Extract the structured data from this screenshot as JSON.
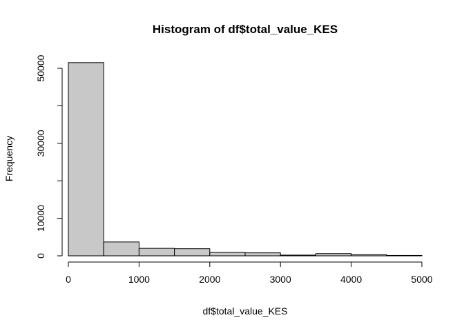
{
  "chart_data": {
    "type": "bar",
    "title": "Histogram of df$total_value_KES",
    "xlabel": "df$total_value_KES",
    "ylabel": "Frequency",
    "bin_edges": [
      0,
      500,
      1000,
      1500,
      2000,
      2500,
      3000,
      3500,
      4000,
      4500,
      5000
    ],
    "values": [
      51500,
      3700,
      2000,
      1900,
      900,
      800,
      200,
      600,
      300,
      100
    ],
    "x_ticks": [
      "0",
      "1000",
      "2000",
      "3000",
      "4000",
      "5000"
    ],
    "y_ticks": [
      "0",
      "10000",
      "30000",
      "50000"
    ],
    "xlim": [
      0,
      5000
    ],
    "ylim": [
      0,
      50000
    ],
    "grid": false,
    "colors": {
      "bar_fill": "#c8c8c8",
      "bar_stroke": "#000000"
    }
  }
}
